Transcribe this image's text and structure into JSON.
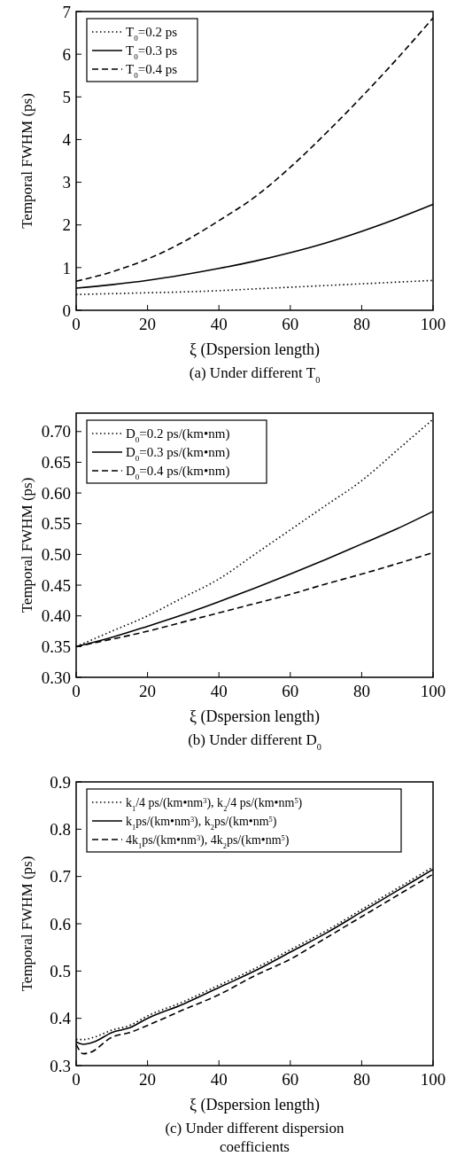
{
  "chart_data": [
    {
      "type": "line",
      "title": "(a) Under different T$_{0}$",
      "xlabel": "ξ (Dspersion length)",
      "ylabel": "Temporal FWHM (ps)",
      "x": [
        0,
        10,
        20,
        30,
        40,
        50,
        60,
        70,
        80,
        90,
        100
      ],
      "xlim": [
        0,
        100
      ],
      "xticks": [
        0,
        20,
        40,
        60,
        80,
        100
      ],
      "ylim": [
        0,
        7
      ],
      "yticks": [
        0,
        1,
        2,
        3,
        4,
        5,
        6,
        7
      ],
      "legend": "top left",
      "grid": false,
      "series": [
        {
          "name": "T$_{0}$=0.2 ps",
          "color": "#000000",
          "line_style": "dotted",
          "values": [
            0.37,
            0.39,
            0.41,
            0.43,
            0.46,
            0.5,
            0.54,
            0.58,
            0.62,
            0.66,
            0.7
          ]
        },
        {
          "name": "T$_{0}$=0.3 ps",
          "color": "#000000",
          "line_style": "solid",
          "values": [
            0.52,
            0.6,
            0.7,
            0.83,
            0.98,
            1.15,
            1.35,
            1.58,
            1.85,
            2.15,
            2.48
          ]
        },
        {
          "name": "T$_{0}$=0.4 ps",
          "color": "#000000",
          "line_style": "dashed",
          "values": [
            0.68,
            0.9,
            1.2,
            1.6,
            2.1,
            2.65,
            3.35,
            4.15,
            5.0,
            5.9,
            6.85
          ]
        }
      ]
    },
    {
      "type": "line",
      "title": "(b) Under different D$_{0}$",
      "xlabel": "ξ (Dspersion length)",
      "ylabel": "Temporal FWHM (ps)",
      "x": [
        0,
        10,
        20,
        30,
        40,
        50,
        60,
        70,
        80,
        90,
        100
      ],
      "xlim": [
        0,
        100
      ],
      "xticks": [
        0,
        20,
        40,
        60,
        80,
        100
      ],
      "ylim": [
        0.3,
        0.73
      ],
      "yticks": [
        {
          "value": 0.3,
          "label": "0.30"
        },
        {
          "value": 0.35,
          "label": "0.35"
        },
        {
          "value": 0.4,
          "label": "0.40"
        },
        {
          "value": 0.45,
          "label": "0.45"
        },
        {
          "value": 0.5,
          "label": "0.50"
        },
        {
          "value": 0.55,
          "label": "0.55"
        },
        {
          "value": 0.6,
          "label": "0.60"
        },
        {
          "value": 0.65,
          "label": "0.65"
        },
        {
          "value": 0.7,
          "label": "0.70"
        }
      ],
      "legend": "top left",
      "grid": false,
      "series": [
        {
          "name": "D$_{0}$=0.2 ps/(km•nm)",
          "color": "#000000",
          "line_style": "dotted",
          "values": [
            0.35,
            0.375,
            0.4,
            0.43,
            0.46,
            0.5,
            0.54,
            0.58,
            0.62,
            0.67,
            0.72
          ]
        },
        {
          "name": "D$_{0}$=0.3 ps/(km•nm)",
          "color": "#000000",
          "line_style": "solid",
          "values": [
            0.35,
            0.365,
            0.383,
            0.402,
            0.423,
            0.445,
            0.468,
            0.492,
            0.517,
            0.542,
            0.57
          ]
        },
        {
          "name": "D$_{0}$=0.4 ps/(km•nm)",
          "color": "#000000",
          "line_style": "dashed",
          "values": [
            0.35,
            0.362,
            0.375,
            0.39,
            0.405,
            0.42,
            0.435,
            0.452,
            0.468,
            0.485,
            0.503
          ]
        }
      ]
    },
    {
      "type": "line",
      "title": "(c) Under different dispersion coefficients",
      "xlabel": "ξ (Dspersion length)",
      "ylabel": "Temporal FWHM (ps)",
      "xlim": [
        0,
        100
      ],
      "xticks": [
        0,
        20,
        40,
        60,
        80,
        100
      ],
      "ylim": [
        0.3,
        0.9
      ],
      "yticks": [
        0.3,
        0.4,
        0.5,
        0.6,
        0.7,
        0.8,
        0.9
      ],
      "legend": "top left",
      "grid": false,
      "series": [
        {
          "name": "k$_{1}$/4 ps/(km•nm$^{3}$),  k$_{2}$/4 ps/(km•nm$^{5}$)",
          "color": "#000000",
          "line_style": "dotted",
          "x": [
            0,
            2,
            5,
            10,
            15,
            20,
            30,
            40,
            50,
            60,
            70,
            80,
            90,
            100
          ],
          "values": [
            0.355,
            0.355,
            0.36,
            0.375,
            0.385,
            0.405,
            0.435,
            0.47,
            0.505,
            0.545,
            0.585,
            0.63,
            0.675,
            0.72
          ]
        },
        {
          "name": "k$_{1}$ps/(km•nm$^{3}$),  k$_{2}$ps/(km•nm$^{5}$)",
          "color": "#000000",
          "line_style": "solid",
          "x": [
            0,
            2,
            5,
            10,
            15,
            20,
            30,
            40,
            50,
            60,
            70,
            80,
            90,
            100
          ],
          "values": [
            0.35,
            0.345,
            0.35,
            0.37,
            0.38,
            0.4,
            0.43,
            0.465,
            0.5,
            0.54,
            0.58,
            0.625,
            0.67,
            0.715
          ]
        },
        {
          "name": "4k$_{1}$ps/(km•nm$^{3}$), 4k$_{2}$ps/(km•nm$^{5}$)",
          "color": "#000000",
          "line_style": "dashed",
          "x": [
            0,
            2,
            4,
            10,
            15,
            20,
            30,
            40,
            50,
            60,
            70,
            80,
            90,
            100
          ],
          "values": [
            0.345,
            0.325,
            0.328,
            0.36,
            0.37,
            0.385,
            0.418,
            0.45,
            0.49,
            0.525,
            0.57,
            0.615,
            0.66,
            0.705
          ]
        }
      ]
    }
  ]
}
